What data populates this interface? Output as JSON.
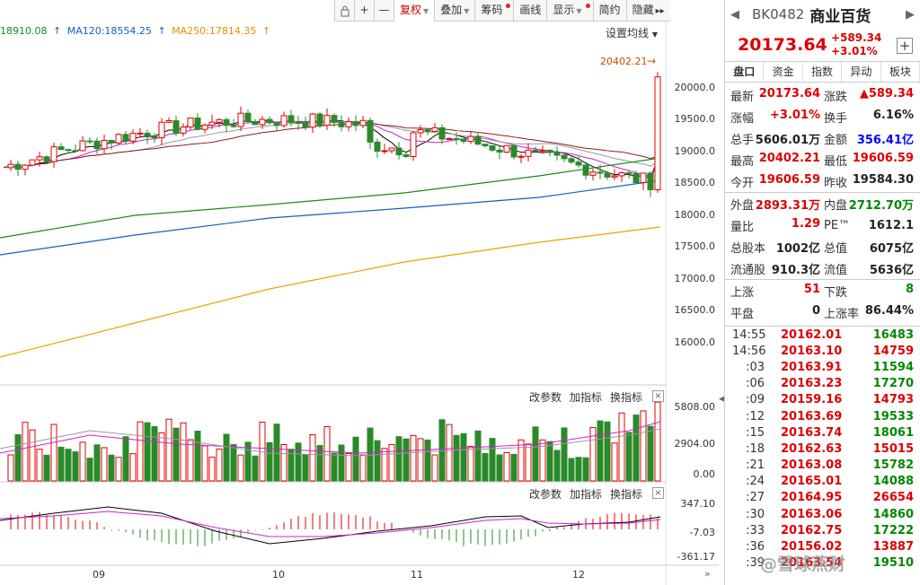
{
  "toolbar": {
    "lock_icon": "lock-icon",
    "plus_label": "+",
    "minus_label": "—",
    "items": [
      "复权",
      "叠加",
      "筹码",
      "画线",
      "显示",
      "简约",
      "隐藏"
    ],
    "expand_label": "▸▸"
  },
  "ma_legend": {
    "ma_a": "18910.08",
    "ma120": "MA120:18554.25",
    "ma250": "MA250:17814.35",
    "settings": "设置均线"
  },
  "price_axis": [
    "20000.0",
    "19500.0",
    "19000.0",
    "18500.0",
    "18000.0",
    "17500.0",
    "17000.0",
    "16500.0",
    "16000.0"
  ],
  "high_marker": "20402.21",
  "volume_panel": {
    "controls": [
      "改参数",
      "加指标",
      "换指标"
    ],
    "axis": [
      "5808.00",
      "2904.00",
      "0.00"
    ]
  },
  "macd_panel": {
    "controls": [
      "改参数",
      "加指标",
      "换指标"
    ],
    "axis": [
      "347.10",
      "-7.03",
      "-361.17"
    ]
  },
  "x_axis": [
    "09",
    "10",
    "11",
    "12"
  ],
  "colors": {
    "up": "#e00000",
    "down": "#2a8a2a",
    "ma5": "#000000",
    "ma10": "#d020d0",
    "ma20": "#999999",
    "ma30": "#8b1a1a",
    "ma60": "#1a8a1a",
    "ma120": "#1060c0",
    "ma250": "#f0a000"
  },
  "stock": {
    "code": "BK0482",
    "name": "商业百货",
    "price": "20173.64",
    "change": "+589.34",
    "change_pct": "+3.01%"
  },
  "tabs": [
    "盘口",
    "资金",
    "指数",
    "异动",
    "板块"
  ],
  "stats": [
    [
      {
        "l": "最新",
        "v": "20173.64",
        "c": "red"
      },
      {
        "l": "涨跌",
        "v": "▲589.34",
        "c": "red"
      }
    ],
    [
      {
        "l": "涨幅",
        "v": "+3.01%",
        "c": "red"
      },
      {
        "l": "换手",
        "v": "6.16%",
        "c": "black"
      }
    ],
    [
      {
        "l": "总手",
        "v": "5606.01万",
        "c": "black"
      },
      {
        "l": "金额",
        "v": "356.41亿",
        "c": "blue"
      }
    ],
    [
      {
        "l": "最高",
        "v": "20402.21",
        "c": "red"
      },
      {
        "l": "最低",
        "v": "19606.59",
        "c": "red"
      }
    ],
    [
      {
        "l": "今开",
        "v": "19606.59",
        "c": "red"
      },
      {
        "l": "昨收",
        "v": "19584.30",
        "c": "black"
      }
    ],
    [
      {
        "l": "外盘",
        "v": "2893.31万",
        "c": "red"
      },
      {
        "l": "内盘",
        "v": "2712.70万",
        "c": "green"
      }
    ],
    [
      {
        "l": "量比",
        "v": "1.29",
        "c": "red"
      },
      {
        "l": "PE™",
        "v": "1612.1",
        "c": "black"
      }
    ],
    [
      {
        "l": "总股本",
        "v": "1002亿",
        "c": "black"
      },
      {
        "l": "总值",
        "v": "6075亿",
        "c": "black"
      }
    ],
    [
      {
        "l": "流通股",
        "v": "910.3亿",
        "c": "black"
      },
      {
        "l": "流值",
        "v": "5636亿",
        "c": "black"
      }
    ],
    [
      {
        "l": "上涨",
        "v": "51",
        "c": "red"
      },
      {
        "l": "下跌",
        "v": "8",
        "c": "green"
      }
    ],
    [
      {
        "l": "平盘",
        "v": "0",
        "c": "black"
      },
      {
        "l": "上涨率",
        "v": "86.44%",
        "c": "black"
      }
    ]
  ],
  "ticks": [
    {
      "t": "14:55",
      "p": "20162.01",
      "v": "16483"
    },
    {
      "t": "14:56",
      "p": "20163.10",
      "v": "14759"
    },
    {
      "t": ":03",
      "p": "20163.91",
      "v": "11594"
    },
    {
      "t": ":06",
      "p": "20163.23",
      "v": "17270"
    },
    {
      "t": ":09",
      "p": "20159.16",
      "v": "14793"
    },
    {
      "t": ":12",
      "p": "20163.69",
      "v": "19533"
    },
    {
      "t": ":15",
      "p": "20163.74",
      "v": "18061"
    },
    {
      "t": ":18",
      "p": "20162.63",
      "v": "15015"
    },
    {
      "t": ":21",
      "p": "20163.08",
      "v": "15782"
    },
    {
      "t": ":24",
      "p": "20165.01",
      "v": "14088"
    },
    {
      "t": ":27",
      "p": "20164.95",
      "v": "26654"
    },
    {
      "t": ":30",
      "p": "20163.06",
      "v": "14860"
    },
    {
      "t": ":33",
      "p": "20162.75",
      "v": "17222"
    },
    {
      "t": ":36",
      "p": "20156.02",
      "v": "13887"
    },
    {
      "t": ":39",
      "p": "20163.54",
      "v": "19510"
    }
  ],
  "watermark": "@雪球燕财"
}
